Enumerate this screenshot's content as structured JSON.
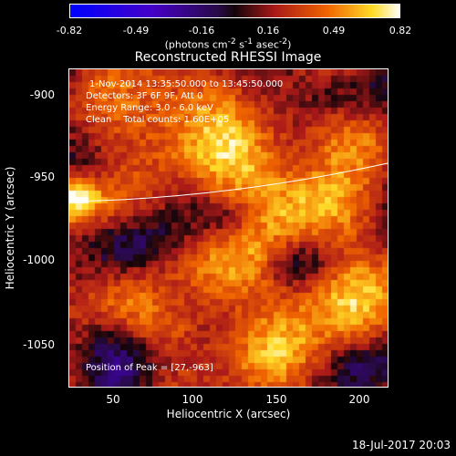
{
  "colorbar": {
    "ticks": [
      "-0.82",
      "-0.49",
      "-0.16",
      "0.16",
      "0.49",
      "0.82"
    ],
    "units_prefix": "(photons cm",
    "units_exp1": "-2",
    "units_mid1": " s",
    "units_exp2": "-1",
    "units_mid2": " asec",
    "units_exp3": "-2",
    "units_suffix": ")",
    "range": [
      -0.82,
      0.82
    ]
  },
  "title": "Reconstructed RHESSI Image",
  "info": {
    "time": "1-Nov-2014 13:35:50.000 to 13:45:50.000",
    "detectors": "Detectors: 3F 6F 9F, Att 0",
    "energy": "Energy Range: 3.0 - 6.0 keV",
    "clean_counts": "Clean    Total counts: 1.60E+05",
    "peak": "Position of Peak = [27,-963]"
  },
  "axes": {
    "xlabel": "Heliocentric X (arcsec)",
    "ylabel": "Heliocentric Y (arcsec)",
    "xticks": [
      "50",
      "100",
      "150",
      "200"
    ],
    "yticks": [
      "-900",
      "-950",
      "-1000",
      "-1050"
    ],
    "xlim": [
      24,
      215
    ],
    "ylim": [
      -1075,
      -885
    ]
  },
  "footer": "18-Jul-2017 20:03",
  "colors": {
    "limb_line": "#ffffff",
    "background": "#000000"
  }
}
